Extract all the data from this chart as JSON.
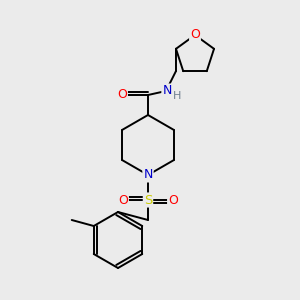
{
  "bg_color": "#ebebeb",
  "atom_colors": {
    "C": "#000000",
    "N": "#0000cc",
    "O": "#ff0000",
    "S": "#cccc00",
    "H": "#708090"
  },
  "bond_color": "#000000",
  "bond_width": 1.4
}
